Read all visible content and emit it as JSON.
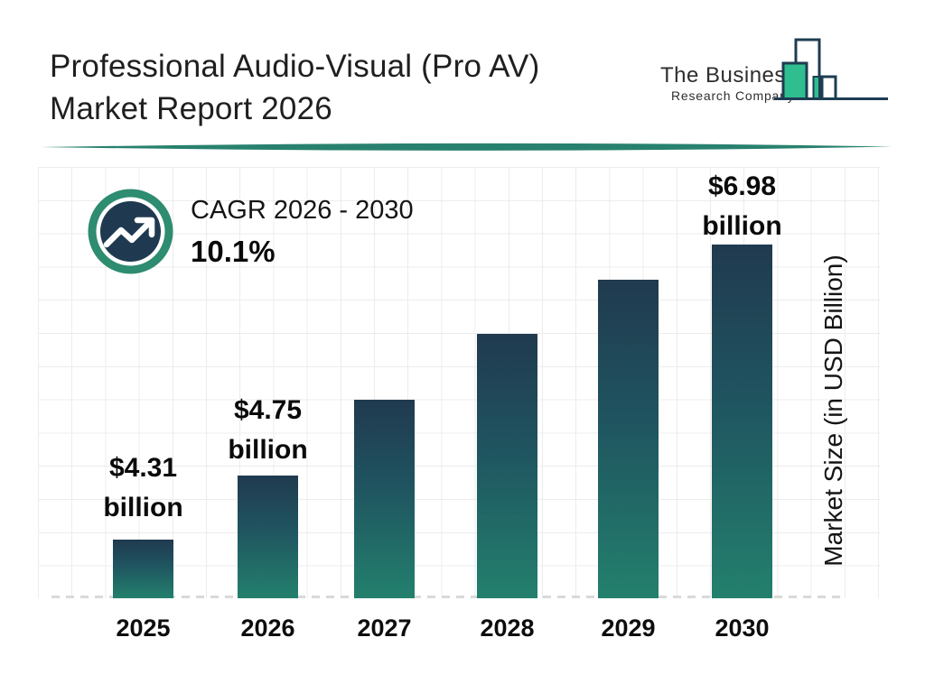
{
  "header": {
    "title": "Professional Audio-Visual (Pro AV)\nMarket Report 2026",
    "logo": {
      "name": "The Business",
      "subname": "Research Company",
      "icon": "bar-chart-logo-icon"
    },
    "divider_color": "#28816e"
  },
  "cagr_badge": {
    "icon": "trending-up-icon",
    "label": "CAGR 2026 - 2030",
    "value": "10.1%"
  },
  "y_axis_label": "Market Size (in USD Billion)",
  "chart_data": {
    "type": "bar",
    "title": "Professional Audio-Visual (Pro AV) Market Report 2026",
    "categories": [
      "2025",
      "2026",
      "2027",
      "2028",
      "2029",
      "2030"
    ],
    "values": [
      4.31,
      4.75,
      5.23,
      5.76,
      6.34,
      6.98
    ],
    "values_unit": "USD Billion",
    "ylabel": "Market Size (in USD Billion)",
    "xlabel": "",
    "legend": false,
    "grid": true,
    "baseline_style": "dashed",
    "cagr_2026_2030_pct": 10.1,
    "bar_labels": [
      {
        "index": 0,
        "line1": "$4.31",
        "line2": "billion"
      },
      {
        "index": 1,
        "line1": "$4.75",
        "line2": "billion"
      },
      {
        "index": 5,
        "line1": "$6.98",
        "line2": "billion"
      }
    ],
    "bar_color_top": "#203a4f",
    "bar_color_bottom": "#23806d"
  },
  "colors": {
    "accent_teal": "#28816e",
    "badge_ring_green": "#2e8c70",
    "badge_inner_navy": "#1f3a50",
    "logo_navy": "#1d3d52",
    "logo_green": "#2fbe8f",
    "grid_line": "#ececec",
    "baseline_dash": "#d9d9d9",
    "text_dark": "#1f1f1f"
  }
}
